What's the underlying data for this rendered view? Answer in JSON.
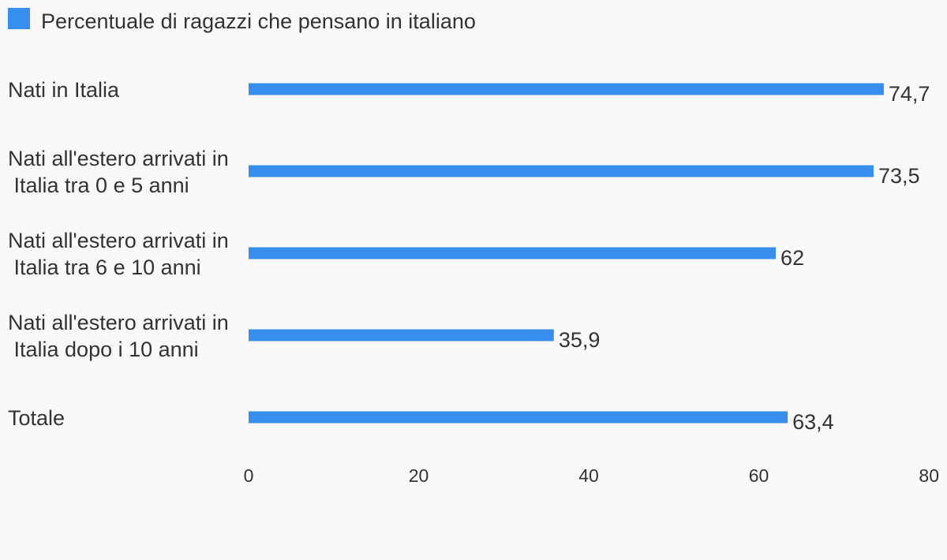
{
  "chart_data": {
    "type": "bar",
    "orientation": "horizontal",
    "categories": [
      "Nati in Italia",
      "Nati all'estero arrivati in\n Italia tra 0 e 5 anni",
      "Nati all'estero arrivati in\n Italia tra 6 e 10 anni",
      "Nati all'estero arrivati in\n Italia dopo i 10 anni",
      "Totale"
    ],
    "series": [
      {
        "name": "Percentuale di ragazzi che pensano in italiano",
        "values": [
          74.7,
          73.5,
          62,
          35.9,
          63.4
        ],
        "value_labels": [
          "74,7",
          "73,5",
          "62",
          "35,9",
          "63,4"
        ],
        "color": "#368fee"
      }
    ],
    "title": "",
    "xlabel": "",
    "ylabel": "",
    "xlim": [
      0,
      80
    ],
    "ticks": [
      0,
      20,
      40,
      60,
      80
    ],
    "tick_labels": [
      "0",
      "20",
      "40",
      "60",
      "80"
    ],
    "legend_position": "top-left",
    "grid": false
  }
}
